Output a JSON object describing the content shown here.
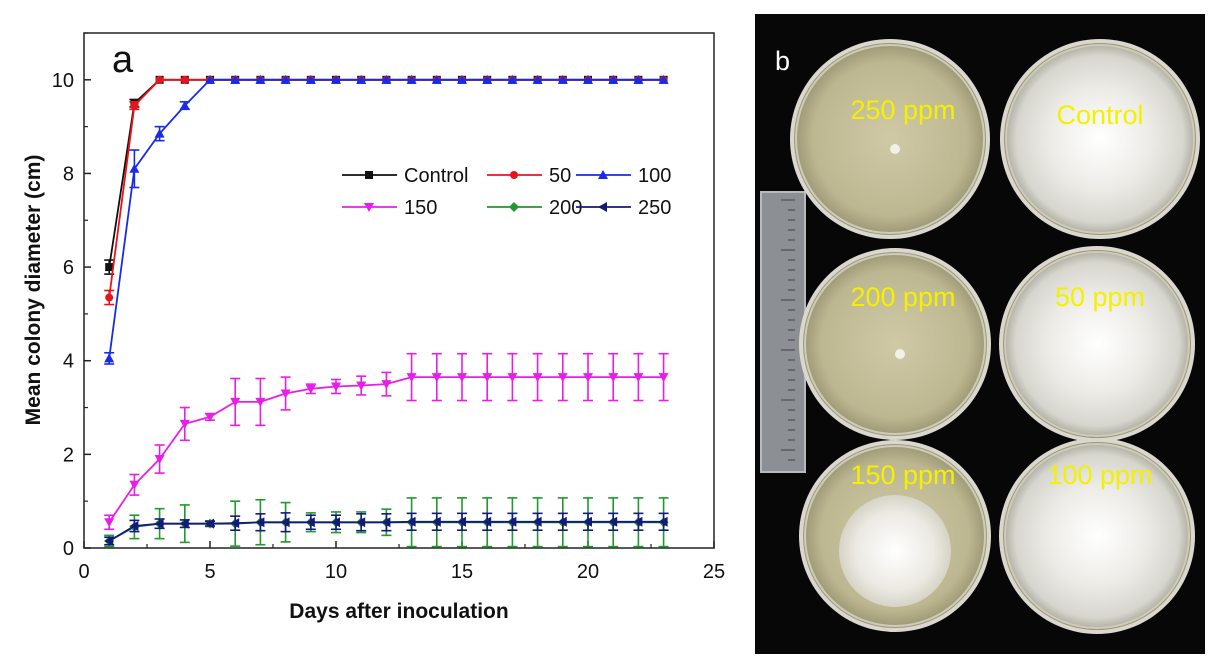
{
  "chart_data": {
    "panel_label": "a",
    "type": "line",
    "xlabel": "Days after inoculation",
    "ylabel": "Mean colony diameter (cm)",
    "xlim": [
      0,
      25
    ],
    "ylim": [
      0,
      11
    ],
    "xticks": [
      "0",
      "5",
      "10",
      "15",
      "20",
      "25"
    ],
    "yticks": [
      "0",
      "2",
      "4",
      "6",
      "8",
      "10"
    ],
    "legend_position": "center-right",
    "series": [
      {
        "name": "Control",
        "color": "#111111",
        "marker": "square",
        "x": [
          1,
          2,
          3,
          4,
          5,
          6,
          7,
          8,
          9,
          10,
          11,
          12,
          13,
          14,
          15,
          16,
          17,
          18,
          19,
          20,
          21,
          22,
          23
        ],
        "values": [
          6.0,
          9.5,
          10,
          10,
          10,
          10,
          10,
          10,
          10,
          10,
          10,
          10,
          10,
          10,
          10,
          10,
          10,
          10,
          10,
          10,
          10,
          10,
          10
        ],
        "errors": [
          0.15,
          0.08,
          0,
          0,
          0,
          0,
          0,
          0,
          0,
          0,
          0,
          0,
          0,
          0,
          0,
          0,
          0,
          0,
          0,
          0,
          0,
          0,
          0
        ]
      },
      {
        "name": "50",
        "color": "#e8141c",
        "marker": "circle",
        "x": [
          1,
          2,
          3,
          4,
          5,
          6,
          7,
          8,
          9,
          10,
          11,
          12,
          13,
          14,
          15,
          16,
          17,
          18,
          19,
          20,
          21,
          22,
          23
        ],
        "values": [
          5.35,
          9.45,
          10,
          10,
          10,
          10,
          10,
          10,
          10,
          10,
          10,
          10,
          10,
          10,
          10,
          10,
          10,
          10,
          10,
          10,
          10,
          10,
          10
        ],
        "errors": [
          0.15,
          0.08,
          0,
          0,
          0,
          0,
          0,
          0,
          0,
          0,
          0,
          0,
          0,
          0,
          0,
          0,
          0,
          0,
          0,
          0,
          0,
          0,
          0
        ]
      },
      {
        "name": "100",
        "color": "#1a2be8",
        "marker": "triangle-up",
        "x": [
          1,
          2,
          3,
          4,
          5,
          6,
          7,
          8,
          9,
          10,
          11,
          12,
          13,
          14,
          15,
          16,
          17,
          18,
          19,
          20,
          21,
          22,
          23
        ],
        "values": [
          4.05,
          8.1,
          8.85,
          9.45,
          10,
          10,
          10,
          10,
          10,
          10,
          10,
          10,
          10,
          10,
          10,
          10,
          10,
          10,
          10,
          10,
          10,
          10,
          10
        ],
        "errors": [
          0.12,
          0.4,
          0.15,
          0.08,
          0,
          0,
          0,
          0,
          0,
          0,
          0,
          0,
          0,
          0,
          0,
          0,
          0,
          0,
          0,
          0,
          0,
          0,
          0
        ]
      },
      {
        "name": "150",
        "color": "#e81ee8",
        "marker": "triangle-down",
        "x": [
          1,
          2,
          3,
          4,
          5,
          6,
          7,
          8,
          9,
          10,
          11,
          12,
          13,
          14,
          15,
          16,
          17,
          18,
          19,
          20,
          21,
          22,
          23
        ],
        "values": [
          0.55,
          1.35,
          1.9,
          2.65,
          2.8,
          3.12,
          3.12,
          3.3,
          3.4,
          3.45,
          3.47,
          3.5,
          3.65,
          3.65,
          3.65,
          3.65,
          3.65,
          3.65,
          3.65,
          3.65,
          3.65,
          3.65,
          3.65
        ],
        "errors": [
          0.15,
          0.22,
          0.3,
          0.35,
          0.07,
          0.5,
          0.5,
          0.35,
          0.1,
          0.15,
          0.2,
          0.25,
          0.5,
          0.5,
          0.5,
          0.5,
          0.5,
          0.5,
          0.5,
          0.5,
          0.5,
          0.5,
          0.5
        ]
      },
      {
        "name": "200",
        "color": "#1f9a2c",
        "marker": "diamond",
        "x": [
          1,
          2,
          3,
          4,
          5,
          6,
          7,
          8,
          9,
          10,
          11,
          12,
          13,
          14,
          15,
          16,
          17,
          18,
          19,
          20,
          21,
          22,
          23
        ],
        "values": [
          0.15,
          0.45,
          0.52,
          0.52,
          0.52,
          0.52,
          0.55,
          0.55,
          0.55,
          0.55,
          0.55,
          0.55,
          0.55,
          0.55,
          0.55,
          0.55,
          0.55,
          0.55,
          0.55,
          0.55,
          0.55,
          0.55,
          0.55
        ],
        "errors": [
          0.12,
          0.25,
          0.32,
          0.4,
          0.06,
          0.48,
          0.48,
          0.42,
          0.2,
          0.22,
          0.22,
          0.28,
          0.52,
          0.52,
          0.52,
          0.52,
          0.52,
          0.52,
          0.52,
          0.52,
          0.52,
          0.52,
          0.52
        ]
      },
      {
        "name": "250",
        "color": "#141a7a",
        "marker": "triangle-left",
        "x": [
          1,
          2,
          3,
          4,
          5,
          6,
          7,
          8,
          9,
          10,
          11,
          12,
          13,
          14,
          15,
          16,
          17,
          18,
          19,
          20,
          21,
          22,
          23
        ],
        "values": [
          0.15,
          0.47,
          0.52,
          0.52,
          0.52,
          0.53,
          0.55,
          0.55,
          0.55,
          0.55,
          0.55,
          0.55,
          0.56,
          0.56,
          0.56,
          0.56,
          0.56,
          0.56,
          0.56,
          0.56,
          0.56,
          0.56,
          0.56
        ],
        "errors": [
          0.08,
          0.12,
          0.1,
          0.08,
          0.05,
          0.15,
          0.18,
          0.2,
          0.15,
          0.15,
          0.18,
          0.18,
          0.18,
          0.18,
          0.18,
          0.18,
          0.18,
          0.18,
          0.18,
          0.18,
          0.18,
          0.18,
          0.18
        ]
      }
    ]
  },
  "photo": {
    "panel_label": "b",
    "plates": [
      {
        "label": "250 ppm",
        "growth": "none"
      },
      {
        "label": "Control",
        "growth": "full"
      },
      {
        "label": "200 ppm",
        "growth": "none"
      },
      {
        "label": "50 ppm",
        "growth": "full"
      },
      {
        "label": "150 ppm",
        "growth": "partial"
      },
      {
        "label": "100 ppm",
        "growth": "full"
      }
    ]
  }
}
